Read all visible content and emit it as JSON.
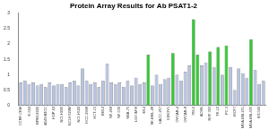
{
  "chart_data": {
    "type": "bar",
    "title": "Protein Array Results for Ab PSAT1-2",
    "categories": [
      "CCRF-CEM",
      null,
      "K-562",
      null,
      "RPMI-8226",
      null,
      "A549/ATCC",
      null,
      "HOP-62",
      null,
      "NCI-H226",
      null,
      "NCI-H322M",
      null,
      "NCI-H522",
      null,
      "HCC-2998",
      null,
      "HCT-15",
      null,
      "KM12",
      null,
      "SF-268",
      null,
      "SF-539",
      null,
      "SNB-75",
      null,
      "LOX IMVI",
      null,
      "M14",
      null,
      "SK-MEL-28",
      null,
      "UACC-257",
      null,
      "IGROV1",
      null,
      "OVCAR-4",
      null,
      "OVCAR-8",
      null,
      "786-0",
      null,
      "ACHN",
      null,
      "RXF 393",
      null,
      "TK-10",
      null,
      "PC-3",
      null,
      "MCF7",
      null,
      "MDA-MB-231",
      null,
      "MDA-MB-435",
      null,
      "BT-549",
      null
    ],
    "values": [
      0.75,
      0.8,
      0.7,
      0.75,
      0.65,
      0.7,
      0.6,
      0.75,
      0.65,
      0.7,
      0.7,
      0.6,
      0.75,
      0.8,
      0.65,
      1.2,
      0.8,
      0.7,
      0.75,
      0.6,
      0.8,
      1.35,
      0.75,
      0.7,
      0.75,
      0.6,
      0.8,
      0.65,
      0.9,
      0.7,
      0.75,
      1.65,
      0.65,
      1.0,
      0.7,
      0.85,
      0.9,
      1.7,
      1.0,
      0.8,
      1.1,
      1.3,
      2.8,
      1.65,
      1.3,
      1.4,
      1.75,
      1.25,
      1.9,
      1.0,
      1.95,
      1.25,
      0.5,
      1.2,
      1.05,
      0.9,
      2.15,
      1.15,
      0.7,
      0.8
    ],
    "colors": [
      "#b8c4e0",
      "#b8c4e0",
      "#b8c4e0",
      "#b8c4e0",
      "#b8c4e0",
      "#b8c4e0",
      "#b8c4e0",
      "#b8c4e0",
      "#b8c4e0",
      "#b8c4e0",
      "#b8c4e0",
      "#b8c4e0",
      "#b8c4e0",
      "#b8c4e0",
      "#b8c4e0",
      "#b8c4e0",
      "#b8c4e0",
      "#b8c4e0",
      "#b8c4e0",
      "#b8c4e0",
      "#b8c4e0",
      "#b8c4e0",
      "#b8c4e0",
      "#b8c4e0",
      "#b8c4e0",
      "#b8c4e0",
      "#b8c4e0",
      "#b8c4e0",
      "#b8c4e0",
      "#b8c4e0",
      "#b8c4e0",
      "#33cc33",
      "#b8c4e0",
      "#b8c4e0",
      "#b8c4e0",
      "#b8c4e0",
      "#b8c4e0",
      "#33cc33",
      "#b8c4e0",
      "#b8c4e0",
      "#b8c4e0",
      "#b8c4e0",
      "#33cc33",
      "#33cc33",
      "#b8c4e0",
      "#b8c4e0",
      "#33cc33",
      "#b8c4e0",
      "#33cc33",
      "#b8c4e0",
      "#33cc33",
      "#b8c4e0",
      "#b8c4e0",
      "#b8c4e0",
      "#b8c4e0",
      "#b8c4e0",
      "#33cc33",
      "#b8c4e0",
      "#b8c4e0",
      "#b8c4e0"
    ],
    "ylim": [
      0,
      3
    ],
    "yticks": [
      0,
      0.5,
      1,
      1.5,
      2,
      2.5,
      3
    ],
    "grid": false
  }
}
